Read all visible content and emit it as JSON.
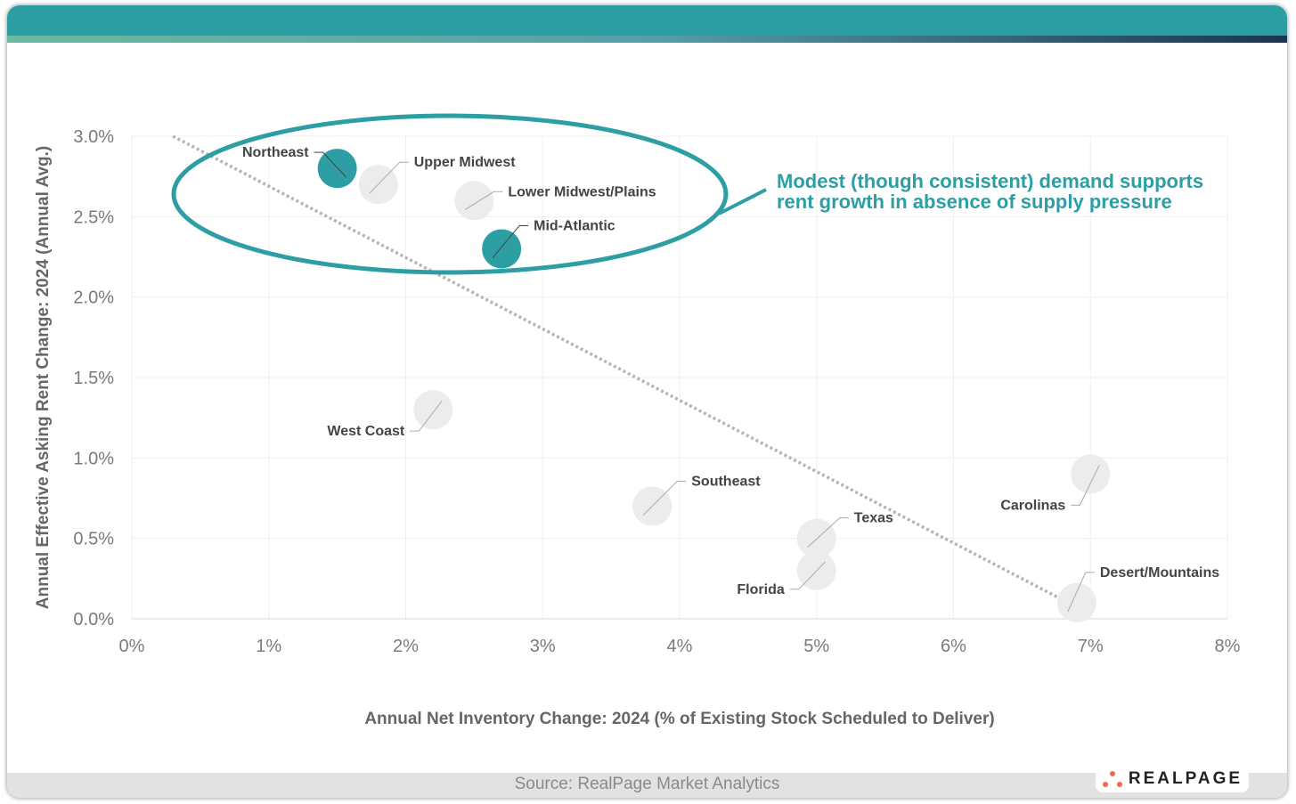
{
  "chart_data": {
    "type": "scatter",
    "xlabel": "Annual Net Inventory Change: 2024 (% of Existing Stock Scheduled to Deliver)",
    "ylabel": "Annual Effective Asking Rent Change: 2024 (Annual Avg.)",
    "xlim": [
      0,
      8
    ],
    "ylim": [
      0,
      3
    ],
    "x_ticks": [
      "0%",
      "1%",
      "2%",
      "3%",
      "4%",
      "5%",
      "6%",
      "7%",
      "8%"
    ],
    "y_ticks": [
      "0.0%",
      "0.5%",
      "1.0%",
      "1.5%",
      "2.0%",
      "2.5%",
      "3.0%"
    ],
    "grid": true,
    "points": [
      {
        "name": "Northeast",
        "x": 1.5,
        "y": 2.8,
        "highlight": true
      },
      {
        "name": "Upper Midwest",
        "x": 1.8,
        "y": 2.7,
        "highlight": false
      },
      {
        "name": "Lower Midwest/Plains",
        "x": 2.5,
        "y": 2.6,
        "highlight": false
      },
      {
        "name": "Mid-Atlantic",
        "x": 2.7,
        "y": 2.3,
        "highlight": true
      },
      {
        "name": "West Coast",
        "x": 2.2,
        "y": 1.3,
        "highlight": false
      },
      {
        "name": "Southeast",
        "x": 3.8,
        "y": 0.7,
        "highlight": false
      },
      {
        "name": "Texas",
        "x": 5.0,
        "y": 0.5,
        "highlight": false
      },
      {
        "name": "Florida",
        "x": 5.0,
        "y": 0.3,
        "highlight": false
      },
      {
        "name": "Carolinas",
        "x": 7.0,
        "y": 0.9,
        "highlight": false
      },
      {
        "name": "Desert/Mountains",
        "x": 6.9,
        "y": 0.1,
        "highlight": false
      }
    ],
    "trendline": {
      "x": [
        0.3,
        6.95
      ],
      "y": [
        3.0,
        0.05
      ]
    },
    "annotation": [
      "Modest (though consistent) demand supports",
      "rent growth in absence of supply pressure"
    ],
    "colors": {
      "highlight": "#2c9ea4",
      "normal": "#ececec",
      "trend": "#b5b5b5"
    }
  },
  "source": "Source: RealPage Market Analytics",
  "logo": "REALPAGE"
}
